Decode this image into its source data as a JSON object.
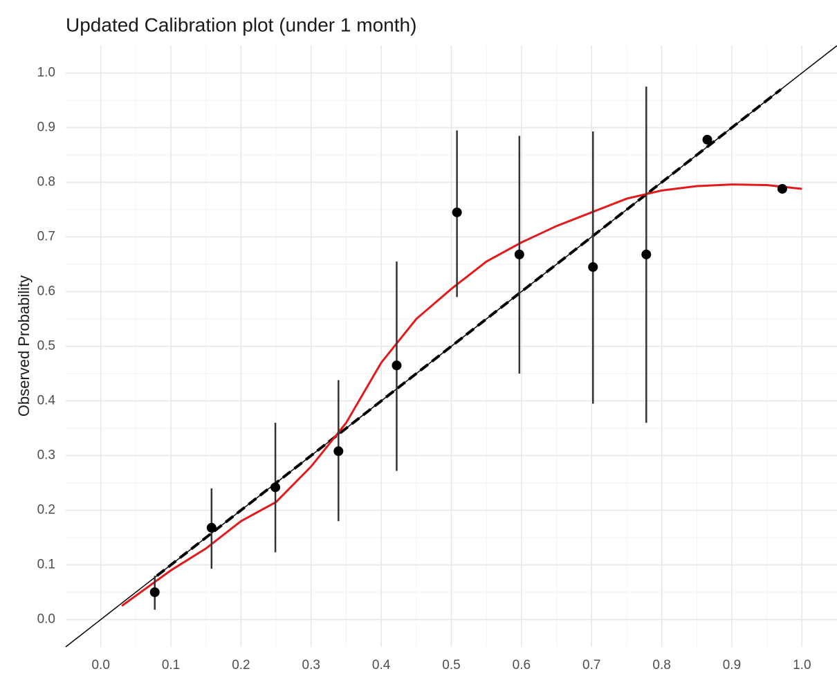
{
  "chart_data": {
    "type": "calibration",
    "title": "Updated Calibration plot (under 1 month)",
    "y_label": "Observed Probability",
    "xlim": [
      -0.05,
      1.05
    ],
    "ylim": [
      -0.05,
      1.05
    ],
    "xticks": [
      {
        "value": 0,
        "label": "0.0"
      },
      0.1,
      0.2,
      0.3,
      0.4,
      0.5,
      0.6,
      0.7,
      0.8,
      0.9,
      {
        "value": 1,
        "label": "1.0"
      }
    ],
    "yticks": [
      {
        "value": 0,
        "label": "0.0"
      },
      0.1,
      0.2,
      0.3,
      0.4,
      0.5,
      0.6,
      0.7,
      0.8,
      0.9,
      {
        "value": 1,
        "label": "1.0"
      }
    ],
    "grid": true,
    "minor_grid": true,
    "points": {
      "color": "#000000",
      "x": [
        0.077,
        0.158,
        0.249,
        0.339,
        0.422,
        0.508,
        0.597,
        0.702,
        0.778,
        0.865,
        0.972
      ],
      "values": [
        0.05,
        0.168,
        0.242,
        0.308,
        0.465,
        0.745,
        0.668,
        0.645,
        0.668,
        0.878,
        0.788
      ],
      "lower": [
        0.018,
        0.093,
        0.123,
        0.18,
        0.272,
        0.59,
        0.45,
        0.395,
        0.36,
        null,
        null
      ],
      "upper": [
        0.08,
        0.24,
        0.36,
        0.438,
        0.655,
        0.895,
        0.885,
        0.893,
        0.975,
        null,
        null
      ]
    },
    "lines": [
      {
        "color": "#000000",
        "dash": false,
        "x": [
          -0.05,
          1.05
        ],
        "values": [
          -0.05,
          1.05
        ]
      },
      {
        "color": "#000000",
        "dash": true,
        "x": [
          0.08,
          0.97
        ],
        "values": [
          0.08,
          0.97
        ]
      },
      {
        "color": "#e31a1c",
        "dash": false,
        "x": [
          0.03,
          0.1,
          0.15,
          0.2,
          0.25,
          0.3,
          0.35,
          0.4,
          0.45,
          0.5,
          0.55,
          0.6,
          0.65,
          0.7,
          0.75,
          0.8,
          0.85,
          0.9,
          0.95,
          1.0
        ],
        "values": [
          0.025,
          0.09,
          0.13,
          0.18,
          0.215,
          0.28,
          0.36,
          0.47,
          0.55,
          0.605,
          0.655,
          0.69,
          0.72,
          0.745,
          0.77,
          0.785,
          0.793,
          0.796,
          0.795,
          0.788
        ]
      }
    ]
  }
}
